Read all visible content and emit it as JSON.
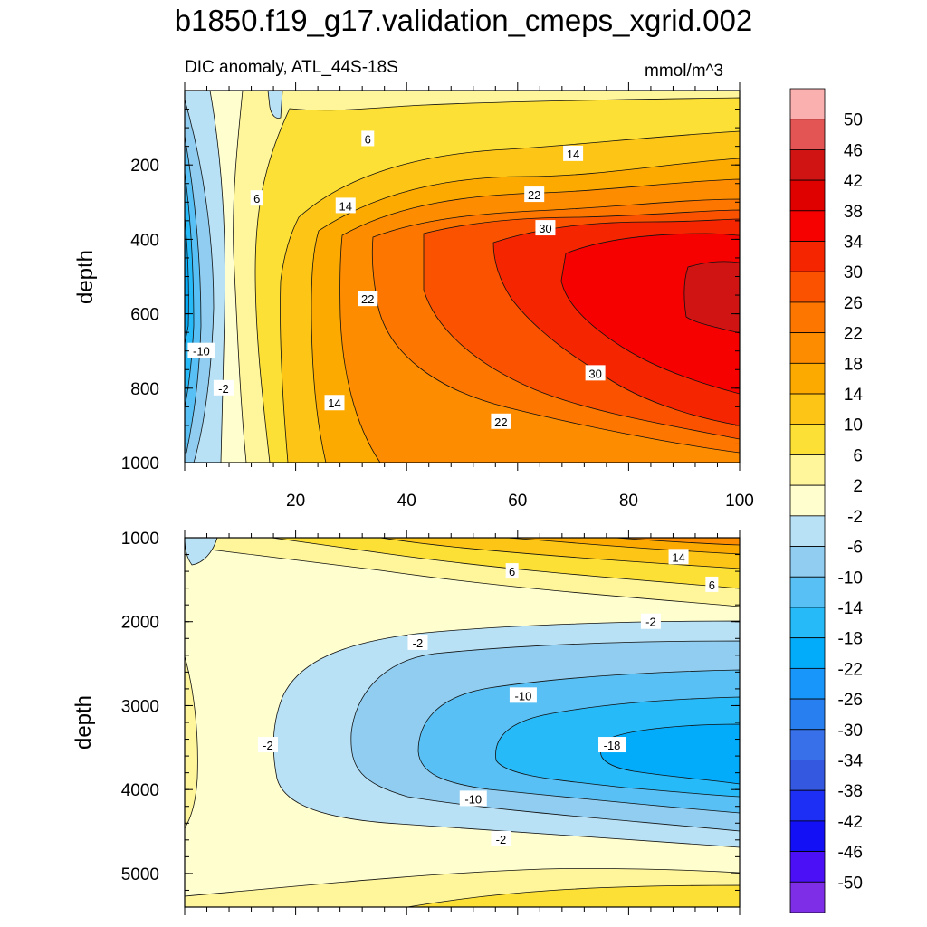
{
  "title": "b1850.f19_g17.validation_cmeps_xgrid.002",
  "subtitle_left": "DIC anomaly, ATL_44S-18S",
  "subtitle_right": "mmol/m^3",
  "chart_data": [
    {
      "type": "heatmap",
      "panel": "upper",
      "xlabel": "",
      "ylabel": "depth",
      "xlim": [
        0,
        100
      ],
      "ylim": [
        1000,
        0
      ],
      "x_ticks": [
        20,
        40,
        60,
        80,
        100
      ],
      "y_ticks": [
        200,
        400,
        600,
        800,
        1000
      ],
      "contour_labels": [
        {
          "x": 33,
          "y": 130,
          "text": "6"
        },
        {
          "x": 13,
          "y": 290,
          "text": "6"
        },
        {
          "x": 29,
          "y": 310,
          "text": "14"
        },
        {
          "x": 70,
          "y": 170,
          "text": "14"
        },
        {
          "x": 63,
          "y": 280,
          "text": "22"
        },
        {
          "x": 65,
          "y": 370,
          "text": "30"
        },
        {
          "x": 33,
          "y": 560,
          "text": "22"
        },
        {
          "x": 3,
          "y": 700,
          "text": "-10"
        },
        {
          "x": 7,
          "y": 800,
          "text": "-2"
        },
        {
          "x": 27,
          "y": 840,
          "text": "14"
        },
        {
          "x": 57,
          "y": 890,
          "text": "22"
        },
        {
          "x": 74,
          "y": 760,
          "text": "30"
        }
      ]
    },
    {
      "type": "heatmap",
      "panel": "lower",
      "xlabel": "",
      "ylabel": "depth",
      "xlim": [
        0,
        100
      ],
      "ylim": [
        5400,
        1000
      ],
      "y_ticks": [
        1000,
        2000,
        3000,
        4000,
        5000
      ],
      "contour_labels": [
        {
          "x": 89,
          "y": 1230,
          "text": "14"
        },
        {
          "x": 59,
          "y": 1400,
          "text": "6"
        },
        {
          "x": 95,
          "y": 1560,
          "text": "6"
        },
        {
          "x": 84,
          "y": 2000,
          "text": "-2"
        },
        {
          "x": 42,
          "y": 2250,
          "text": "-2"
        },
        {
          "x": 61,
          "y": 2880,
          "text": "-10"
        },
        {
          "x": 15,
          "y": 3470,
          "text": "-2"
        },
        {
          "x": 77,
          "y": 3470,
          "text": "-18"
        },
        {
          "x": 52,
          "y": 4110,
          "text": "-10"
        },
        {
          "x": 57,
          "y": 4590,
          "text": "-2"
        }
      ]
    }
  ],
  "colorbar": {
    "levels": [
      "50",
      "46",
      "42",
      "38",
      "34",
      "30",
      "26",
      "22",
      "18",
      "14",
      "10",
      "6",
      "2",
      "-2",
      "-6",
      "-10",
      "-14",
      "-18",
      "-22",
      "-26",
      "-30",
      "-34",
      "-38",
      "-42",
      "-46",
      "-50"
    ],
    "colors": [
      "#fbb0b0",
      "#e35555",
      "#d01414",
      "#df0000",
      "#f70000",
      "#f52500",
      "#fb5200",
      "#fd7700",
      "#fd8c00",
      "#fdaa00",
      "#fdc515",
      "#fde035",
      "#fff59a",
      "#fffece",
      "#b8e1f6",
      "#90cdf0",
      "#58c0f5",
      "#27baf9",
      "#02acfb",
      "#1996fa",
      "#2880f0",
      "#3770e8",
      "#3558e0",
      "#1d2ef5",
      "#1310f5",
      "#4b10f5",
      "#7d2ee6"
    ]
  }
}
